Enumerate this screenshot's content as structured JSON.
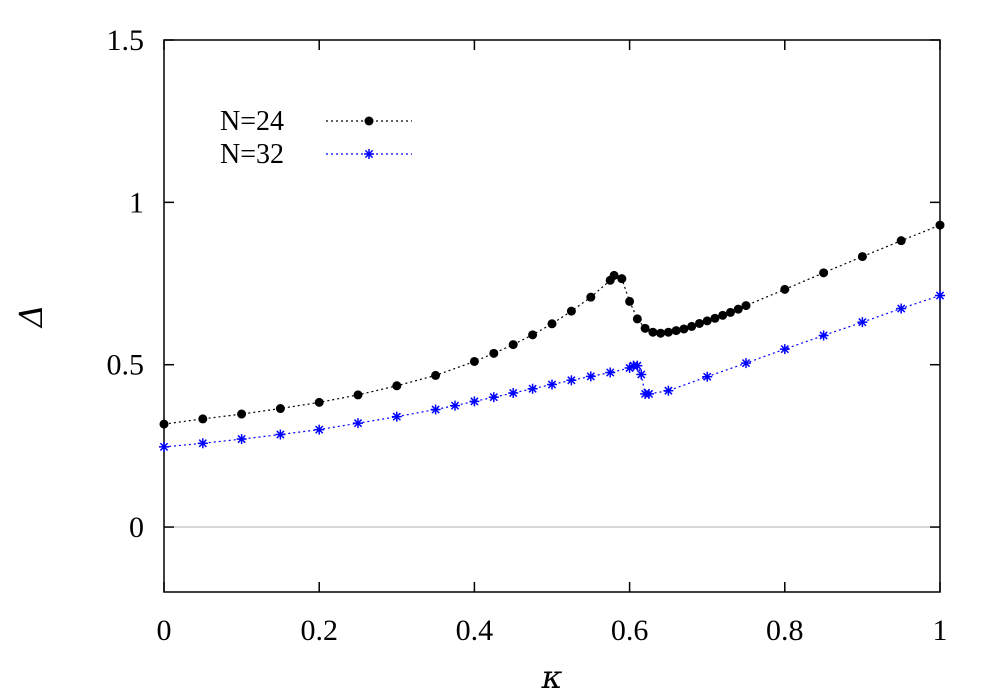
{
  "chart_data": {
    "type": "line",
    "xlabel": "κ",
    "ylabel": "Δ",
    "xlim": [
      0,
      1
    ],
    "ylim": [
      -0.2,
      1.5
    ],
    "xticks": [
      0,
      0.2,
      0.4,
      0.6,
      0.8,
      1
    ],
    "xtick_labels": [
      "0",
      "0.2",
      "0.4",
      "0.6",
      "0.8",
      "1"
    ],
    "yticks": [
      0,
      0.5,
      1,
      1.5
    ],
    "ytick_labels": [
      "0",
      "0.5",
      "1",
      "1.5"
    ],
    "zero_line": true,
    "grid": false,
    "legend_position": "top-left",
    "series": [
      {
        "name": "N=24",
        "color": "#000000",
        "marker": "filled-circle",
        "line": "dotted",
        "x": [
          0,
          0.05,
          0.1,
          0.15,
          0.2,
          0.25,
          0.3,
          0.35,
          0.4,
          0.425,
          0.45,
          0.475,
          0.5,
          0.525,
          0.55,
          0.575,
          0.58,
          0.59,
          0.6,
          0.61,
          0.62,
          0.63,
          0.64,
          0.65,
          0.66,
          0.67,
          0.68,
          0.69,
          0.7,
          0.71,
          0.72,
          0.73,
          0.74,
          0.75,
          0.8,
          0.85,
          0.9,
          0.95,
          1.0
        ],
        "y": [
          0.317,
          0.333,
          0.348,
          0.365,
          0.384,
          0.407,
          0.435,
          0.467,
          0.51,
          0.535,
          0.562,
          0.592,
          0.626,
          0.665,
          0.708,
          0.76,
          0.775,
          0.765,
          0.695,
          0.641,
          0.612,
          0.6,
          0.597,
          0.6,
          0.605,
          0.61,
          0.618,
          0.627,
          0.635,
          0.643,
          0.652,
          0.661,
          0.671,
          0.682,
          0.732,
          0.783,
          0.833,
          0.882,
          0.93
        ]
      },
      {
        "name": "N=32",
        "color": "#0000ff",
        "marker": "asterisk",
        "line": "dotted",
        "x": [
          0,
          0.05,
          0.1,
          0.15,
          0.2,
          0.25,
          0.3,
          0.35,
          0.375,
          0.4,
          0.425,
          0.45,
          0.475,
          0.5,
          0.525,
          0.55,
          0.575,
          0.6,
          0.605,
          0.61,
          0.615,
          0.62,
          0.625,
          0.65,
          0.7,
          0.75,
          0.8,
          0.85,
          0.9,
          0.95,
          1.0
        ],
        "y": [
          0.247,
          0.258,
          0.271,
          0.285,
          0.3,
          0.32,
          0.34,
          0.362,
          0.374,
          0.387,
          0.4,
          0.413,
          0.426,
          0.439,
          0.452,
          0.464,
          0.476,
          0.49,
          0.497,
          0.497,
          0.47,
          0.41,
          0.41,
          0.42,
          0.463,
          0.505,
          0.548,
          0.59,
          0.631,
          0.673,
          0.713
        ]
      }
    ]
  }
}
